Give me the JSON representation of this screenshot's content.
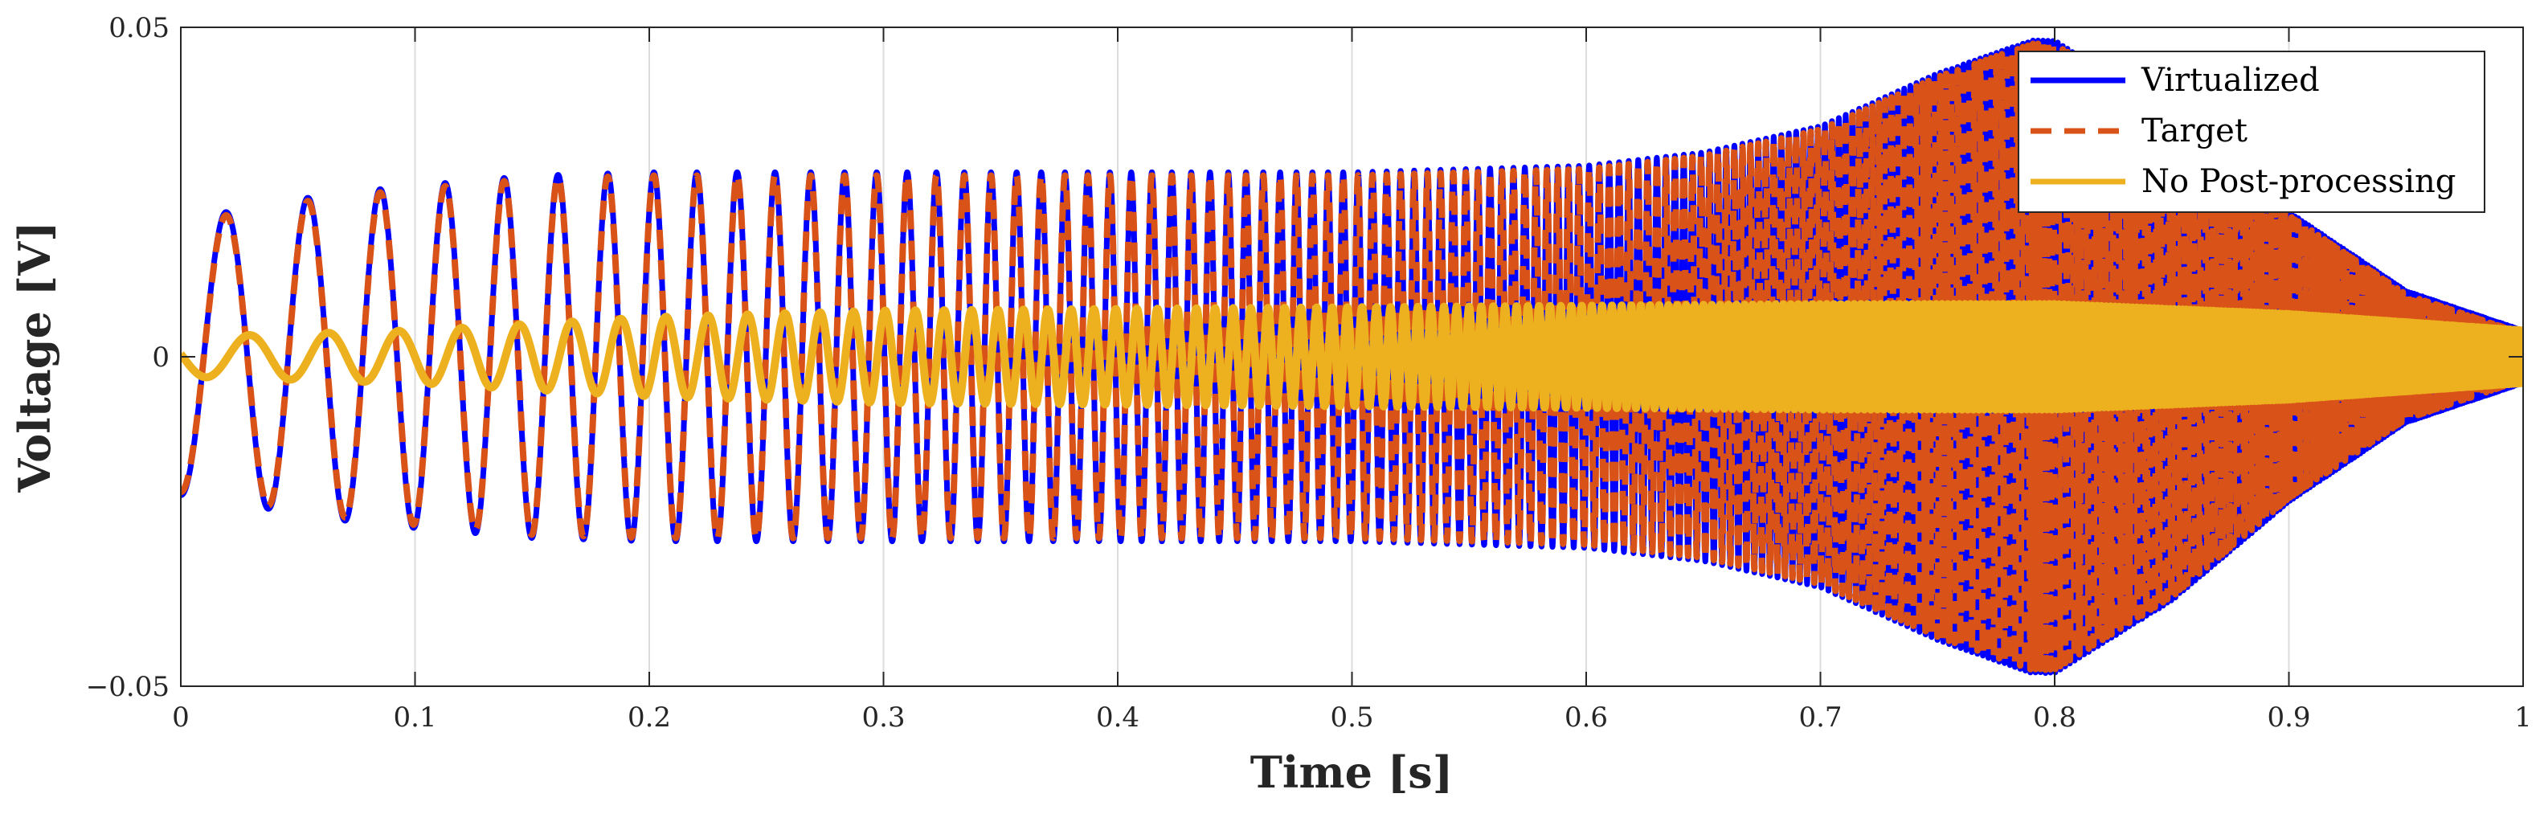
{
  "chart_data": {
    "type": "line",
    "title": "",
    "xlabel": "Time [s]",
    "ylabel": "Voltage [V]",
    "xlim": [
      0,
      1
    ],
    "ylim": [
      -0.05,
      0.05
    ],
    "grid": "x",
    "legend_position": "top-right",
    "x_ticks": [
      {
        "value": 0,
        "label": "0"
      },
      {
        "value": 0.1,
        "label": "0.1"
      },
      {
        "value": 0.2,
        "label": "0.2"
      },
      {
        "value": 0.3,
        "label": "0.3"
      },
      {
        "value": 0.4,
        "label": "0.4"
      },
      {
        "value": 0.5,
        "label": "0.5"
      },
      {
        "value": 0.6,
        "label": "0.6"
      },
      {
        "value": 0.7,
        "label": "0.7"
      },
      {
        "value": 0.8,
        "label": "0.8"
      },
      {
        "value": 0.9,
        "label": "0.9"
      },
      {
        "value": 1,
        "label": "1"
      }
    ],
    "y_ticks": [
      {
        "value": -0.05,
        "label": "−0.05"
      },
      {
        "value": 0,
        "label": "0"
      },
      {
        "value": 0.05,
        "label": "0.05"
      }
    ],
    "signal_model": {
      "description": "Swept-frequency sinusoid (chirp); plotted amplitude follows the envelope keypoints",
      "start_frequency_hz": 25,
      "end_frequency_hz": 1000,
      "sweep": "exponential",
      "sample_count": 20000
    },
    "series": [
      {
        "name": "Virtualized",
        "color": "#0000ff",
        "style": "solid",
        "phase_offset_rad": -1.57,
        "envelope": {
          "t": [
            0,
            0.02,
            0.06,
            0.1,
            0.15,
            0.2,
            0.5,
            0.6,
            0.65,
            0.7,
            0.75,
            0.79,
            0.8,
            0.85,
            0.9,
            0.95,
            1.0
          ],
          "v": [
            0.021,
            0.022,
            0.0245,
            0.026,
            0.0275,
            0.028,
            0.028,
            0.029,
            0.031,
            0.035,
            0.043,
            0.048,
            0.048,
            0.037,
            0.022,
            0.01,
            0.004
          ]
        }
      },
      {
        "name": "Target",
        "color": "#d95319",
        "style": "dashed",
        "phase_offset_rad": -1.57,
        "envelope": {
          "t": [
            0,
            0.02,
            0.06,
            0.1,
            0.15,
            0.2,
            0.5,
            0.6,
            0.65,
            0.7,
            0.75,
            0.79,
            0.8,
            0.85,
            0.9,
            0.95,
            1.0
          ],
          "v": [
            0.0205,
            0.0215,
            0.024,
            0.0255,
            0.027,
            0.0275,
            0.0275,
            0.0285,
            0.0305,
            0.0345,
            0.0425,
            0.0475,
            0.0475,
            0.0365,
            0.0215,
            0.0095,
            0.0035
          ]
        }
      },
      {
        "name": "No Post-processing",
        "color": "#edb120",
        "style": "solid",
        "phase_offset_rad": 3.0,
        "envelope": {
          "t": [
            0,
            0.1,
            0.2,
            0.3,
            0.5,
            0.7,
            0.8,
            0.9,
            1.0
          ],
          "v": [
            0.003,
            0.004,
            0.006,
            0.007,
            0.0075,
            0.008,
            0.008,
            0.0065,
            0.004
          ]
        }
      }
    ]
  }
}
